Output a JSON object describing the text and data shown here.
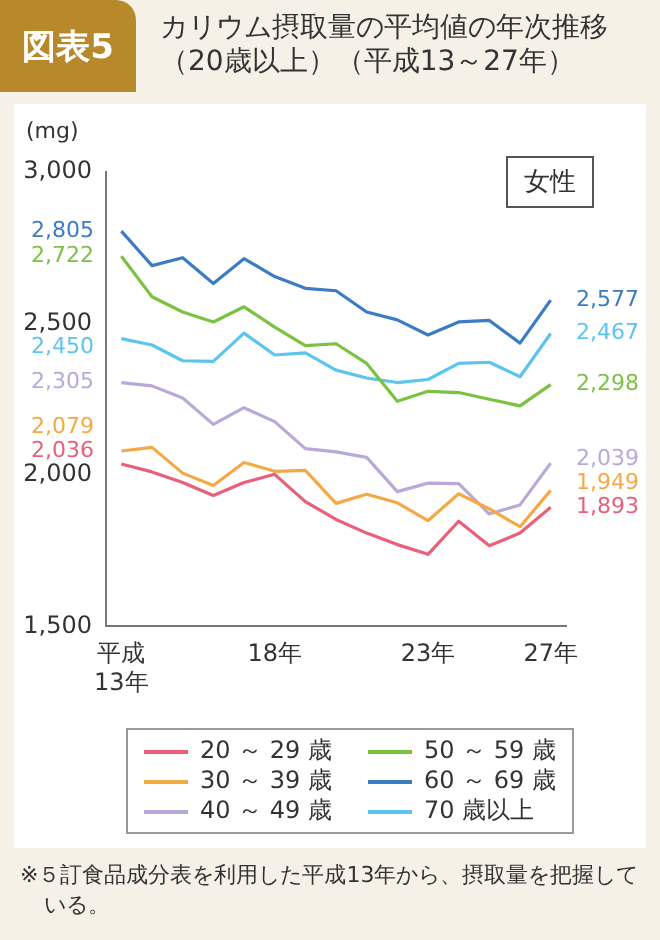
{
  "chart_data": {
    "type": "line",
    "title": "図表5",
    "subtitle": "カリウム摂取量の平均値の年次推移（20歳以上）（平成13～27年）",
    "ylabel": "(mg)",
    "categories": [
      "平成\n13年",
      null,
      null,
      null,
      null,
      "18年",
      null,
      null,
      null,
      null,
      "23年",
      null,
      null,
      null,
      "27年"
    ],
    "ylim": [
      1500,
      3000
    ],
    "yticks": [
      {
        "value": 1500,
        "label": "1,500"
      },
      {
        "value": 2000,
        "label": "2,000"
      },
      {
        "value": 2500,
        "label": "2,500"
      },
      {
        "value": 3000,
        "label": "3,000"
      }
    ],
    "grid": false,
    "legend": "bottom",
    "marker": "none",
    "line_style": "solid",
    "annotations": [
      "女性",
      "※５訂食品成分表を利用した平成13年から、摂取量を把握している。"
    ],
    "series": [
      {
        "name": "20 ～ 29 歳",
        "color": "#e8607a",
        "values": [
          2036,
          2010,
          1975,
          1932,
          1975,
          2002,
          1912,
          1853,
          1808,
          1770,
          1738,
          1847,
          1766,
          1808,
          1893
        ],
        "value_labels": [
          "2,036",
          null,
          null,
          null,
          null,
          null,
          null,
          null,
          null,
          null,
          null,
          null,
          null,
          null,
          "1,893"
        ]
      },
      {
        "name": "30 ～ 39 歳",
        "color": "#f5a945",
        "values": [
          2079,
          2091,
          2006,
          1965,
          2041,
          2012,
          2015,
          1906,
          1936,
          1908,
          1849,
          1938,
          1888,
          1829,
          1949
        ],
        "value_labels": [
          "2,079",
          null,
          null,
          null,
          null,
          null,
          null,
          null,
          null,
          null,
          null,
          null,
          null,
          null,
          "1,949"
        ]
      },
      {
        "name": "40 ～ 49 歳",
        "color": "#b8a9d9",
        "values": [
          2305,
          2294,
          2254,
          2167,
          2222,
          2176,
          2087,
          2076,
          2058,
          1945,
          1973,
          1971,
          1871,
          1901,
          2039
        ],
        "value_labels": [
          "2,305",
          null,
          null,
          null,
          null,
          null,
          null,
          null,
          null,
          null,
          null,
          null,
          null,
          null,
          "2,039"
        ]
      },
      {
        "name": "50 ～ 59 歳",
        "color": "#7cc242",
        "values": [
          2722,
          2588,
          2538,
          2505,
          2555,
          2488,
          2427,
          2433,
          2368,
          2243,
          2276,
          2272,
          2250,
          2228,
          2298
        ],
        "value_labels": [
          "2,722",
          null,
          null,
          null,
          null,
          null,
          null,
          null,
          null,
          null,
          null,
          null,
          null,
          null,
          "2,298"
        ]
      },
      {
        "name": "60 ～ 69 歳",
        "color": "#3b7cc4",
        "values": [
          2805,
          2691,
          2717,
          2632,
          2714,
          2655,
          2616,
          2608,
          2538,
          2512,
          2462,
          2505,
          2510,
          2435,
          2577
        ],
        "value_labels": [
          "2,805",
          null,
          null,
          null,
          null,
          null,
          null,
          null,
          null,
          null,
          null,
          null,
          null,
          null,
          "2,577"
        ]
      },
      {
        "name": "70 歳以上",
        "color": "#5bc4ef",
        "values": [
          2450,
          2429,
          2377,
          2375,
          2468,
          2396,
          2403,
          2346,
          2320,
          2305,
          2315,
          2368,
          2372,
          2324,
          2467
        ],
        "value_labels": [
          "2,450",
          null,
          null,
          null,
          null,
          null,
          null,
          null,
          null,
          null,
          null,
          null,
          null,
          null,
          "2,467"
        ]
      }
    ]
  }
}
